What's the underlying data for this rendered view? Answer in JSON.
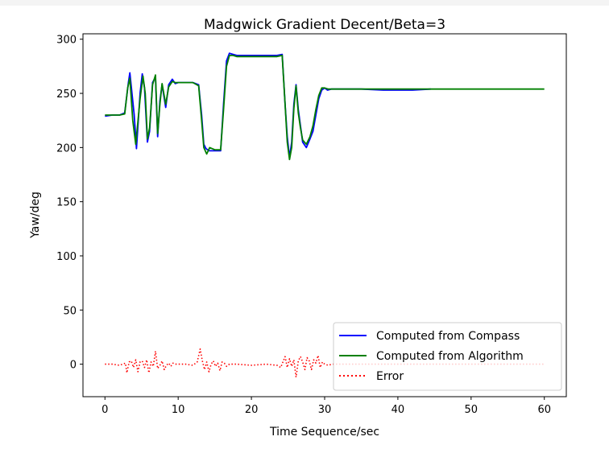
{
  "chart_data": {
    "type": "line",
    "title": "Madgwick Gradient Decent/Beta=3",
    "xlabel": "Time Sequence/sec",
    "ylabel": "Yaw/deg",
    "xlim": [
      -3,
      63
    ],
    "ylim": [
      -30,
      305
    ],
    "xticks": [
      0,
      10,
      20,
      30,
      40,
      50,
      60
    ],
    "yticks": [
      0,
      50,
      100,
      150,
      200,
      250,
      300
    ],
    "grid": false,
    "legend_position": "lower-right",
    "series": [
      {
        "name": "Computed from Compass",
        "color": "#0000ff",
        "style": "solid",
        "x": [
          0,
          1,
          2,
          2.7,
          3.2,
          3.4,
          4.0,
          4.3,
          4.8,
          5.1,
          5.4,
          5.8,
          6.1,
          6.5,
          6.9,
          7.2,
          7.5,
          7.8,
          8.3,
          8.7,
          9.2,
          9.6,
          10,
          11,
          12,
          12.8,
          13.2,
          13.5,
          13.8,
          14.2,
          15,
          15.8,
          16.2,
          16.6,
          17.0,
          17.5,
          18,
          20,
          22,
          23.5,
          24.2,
          24.6,
          24.9,
          25.2,
          25.5,
          25.8,
          26.1,
          26.4,
          26.7,
          27.0,
          27.5,
          28.0,
          28.4,
          28.8,
          29.2,
          29.6,
          30.0,
          30.4,
          30.9,
          31.5,
          33,
          35,
          38,
          40,
          42,
          44.5
        ],
        "y": [
          229,
          230,
          230,
          232,
          260,
          269,
          230,
          199,
          250,
          268,
          255,
          205,
          215,
          260,
          265,
          210,
          243,
          258,
          237,
          258,
          263,
          259,
          260,
          260,
          260,
          258,
          230,
          203,
          199,
          197,
          197,
          197,
          240,
          280,
          287,
          286,
          285,
          285,
          285,
          285,
          286,
          240,
          210,
          191,
          205,
          240,
          258,
          235,
          220,
          205,
          200,
          208,
          215,
          230,
          245,
          253,
          255,
          253,
          254,
          254,
          254,
          254,
          253,
          253,
          253,
          254
        ]
      },
      {
        "name": "Computed from Algorithm",
        "color": "#008000",
        "style": "solid",
        "x": [
          0,
          1,
          2,
          2.7,
          3.1,
          3.4,
          3.8,
          4.2,
          4.8,
          5.2,
          5.5,
          5.8,
          6.1,
          6.5,
          6.9,
          7.2,
          7.5,
          7.8,
          8.3,
          8.7,
          9.2,
          9.6,
          10,
          11,
          12,
          12.8,
          13.2,
          13.5,
          13.9,
          14.3,
          15,
          15.8,
          16.2,
          16.6,
          17.0,
          17.5,
          18,
          20,
          22,
          23.5,
          24.2,
          24.6,
          24.9,
          25.2,
          25.5,
          25.8,
          26.1,
          26.4,
          26.7,
          27.0,
          27.5,
          28.0,
          28.4,
          28.8,
          29.2,
          29.6,
          30.0,
          30.5,
          31,
          35,
          40,
          45,
          50,
          55,
          60
        ],
        "y": [
          230,
          230,
          230,
          231,
          255,
          264,
          225,
          203,
          245,
          266,
          250,
          208,
          218,
          258,
          267,
          213,
          240,
          259,
          240,
          256,
          261,
          260,
          260,
          260,
          260,
          257,
          225,
          200,
          194,
          200,
          198,
          198,
          235,
          275,
          285,
          285,
          284,
          284,
          284,
          284,
          285,
          240,
          205,
          189,
          200,
          236,
          257,
          232,
          218,
          207,
          203,
          210,
          220,
          235,
          248,
          255,
          255,
          254,
          254,
          254,
          254,
          254,
          254,
          254,
          254
        ]
      },
      {
        "name": "Error",
        "color": "#ff0000",
        "style": "dotted",
        "x": [
          0,
          1,
          2,
          2.8,
          3.0,
          3.3,
          3.6,
          3.9,
          4.2,
          4.5,
          4.8,
          5.1,
          5.4,
          5.7,
          6.0,
          6.3,
          6.6,
          6.9,
          7.2,
          7.5,
          7.8,
          8.1,
          8.4,
          8.7,
          9.0,
          9.3,
          9.6,
          10,
          11,
          12,
          12.6,
          13.0,
          13.3,
          13.6,
          13.9,
          14.2,
          14.5,
          14.8,
          15.1,
          15.4,
          15.7,
          16.0,
          16.3,
          16.6,
          17,
          18,
          20,
          22,
          23.5,
          24.0,
          24.3,
          24.6,
          24.9,
          25.2,
          25.5,
          25.8,
          26.1,
          26.4,
          26.7,
          27.0,
          27.3,
          27.6,
          27.9,
          28.2,
          28.5,
          28.8,
          29.1,
          29.4,
          29.7,
          30.0,
          30.5,
          31,
          35,
          40,
          45,
          50,
          55,
          60
        ],
        "y": [
          0,
          0,
          -1,
          1,
          -8,
          2,
          3,
          -3,
          4,
          -7,
          2,
          3,
          -3,
          4,
          -8,
          2,
          -2,
          12,
          -4,
          -1,
          3,
          -5,
          -1,
          1,
          -2,
          1,
          0,
          0,
          0,
          -1,
          2,
          14,
          3,
          -5,
          2,
          -7,
          0,
          3,
          -2,
          1,
          -6,
          2,
          1,
          -2,
          0,
          0,
          -1,
          0,
          -1,
          -3,
          2,
          7,
          -3,
          5,
          -2,
          4,
          -12,
          3,
          7,
          2,
          -5,
          6,
          3,
          -5,
          4,
          1,
          8,
          -3,
          2,
          0,
          -1,
          0,
          0,
          0,
          0,
          0,
          0,
          0
        ]
      }
    ]
  }
}
